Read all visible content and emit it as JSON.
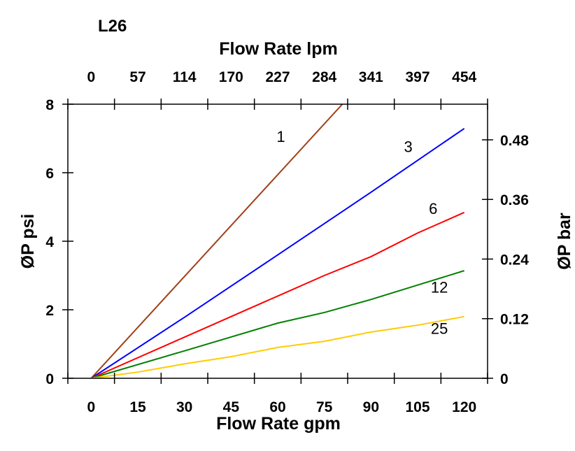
{
  "chart_data": {
    "type": "line",
    "title": "L26",
    "xlabel": "Flow Rate gpm",
    "x2label": "Flow Rate lpm",
    "ylabel": "ØP psi",
    "y2label": "ØP bar",
    "xlim": [
      -7.5,
      127.5
    ],
    "ylim": [
      0,
      8
    ],
    "x_ticks": [
      0,
      15,
      30,
      45,
      60,
      75,
      90,
      105,
      120
    ],
    "x_tick_labels": [
      "0",
      "15",
      "30",
      "45",
      "60",
      "75",
      "90",
      "105",
      "120"
    ],
    "x2_tick_labels": [
      "0",
      "57",
      "114",
      "170",
      "227",
      "284",
      "341",
      "397",
      "454"
    ],
    "y_ticks": [
      0,
      2,
      4,
      6,
      8
    ],
    "y_tick_labels": [
      "0",
      "2",
      "4",
      "6",
      "8"
    ],
    "y2_ticks_psi": [
      0,
      1.74,
      3.48,
      5.22,
      6.96
    ],
    "y2_tick_labels": [
      "0",
      "0.12",
      "0.24",
      "0.36",
      "0.48"
    ],
    "grid": false,
    "series": [
      {
        "name": "1",
        "color": "#a0401a",
        "x": [
          0,
          80.8
        ],
        "y": [
          0,
          8.0
        ],
        "label_at": [
          61,
          6.9
        ]
      },
      {
        "name": "3",
        "color": "#0000ff",
        "x": [
          0,
          30,
          60,
          90,
          120
        ],
        "y": [
          0,
          1.78,
          3.6,
          5.43,
          7.29
        ],
        "label_at": [
          102,
          6.6
        ]
      },
      {
        "name": "6",
        "color": "#ff0000",
        "x": [
          0,
          30,
          60,
          75,
          90,
          105,
          120
        ],
        "y": [
          0,
          1.2,
          2.4,
          3.0,
          3.55,
          4.24,
          4.84
        ],
        "label_at": [
          110,
          4.8
        ]
      },
      {
        "name": "12",
        "color": "#008000",
        "x": [
          0,
          30,
          60,
          75,
          90,
          105,
          120
        ],
        "y": [
          0,
          0.8,
          1.61,
          1.92,
          2.3,
          2.72,
          3.14
        ],
        "label_at": [
          112,
          2.5
        ]
      },
      {
        "name": "25",
        "color": "#ffcc00",
        "x": [
          0,
          15,
          30,
          45,
          60,
          75,
          90,
          105,
          120
        ],
        "y": [
          0,
          0.18,
          0.42,
          0.63,
          0.9,
          1.08,
          1.35,
          1.55,
          1.8
        ],
        "label_at": [
          112,
          1.3
        ]
      }
    ]
  }
}
